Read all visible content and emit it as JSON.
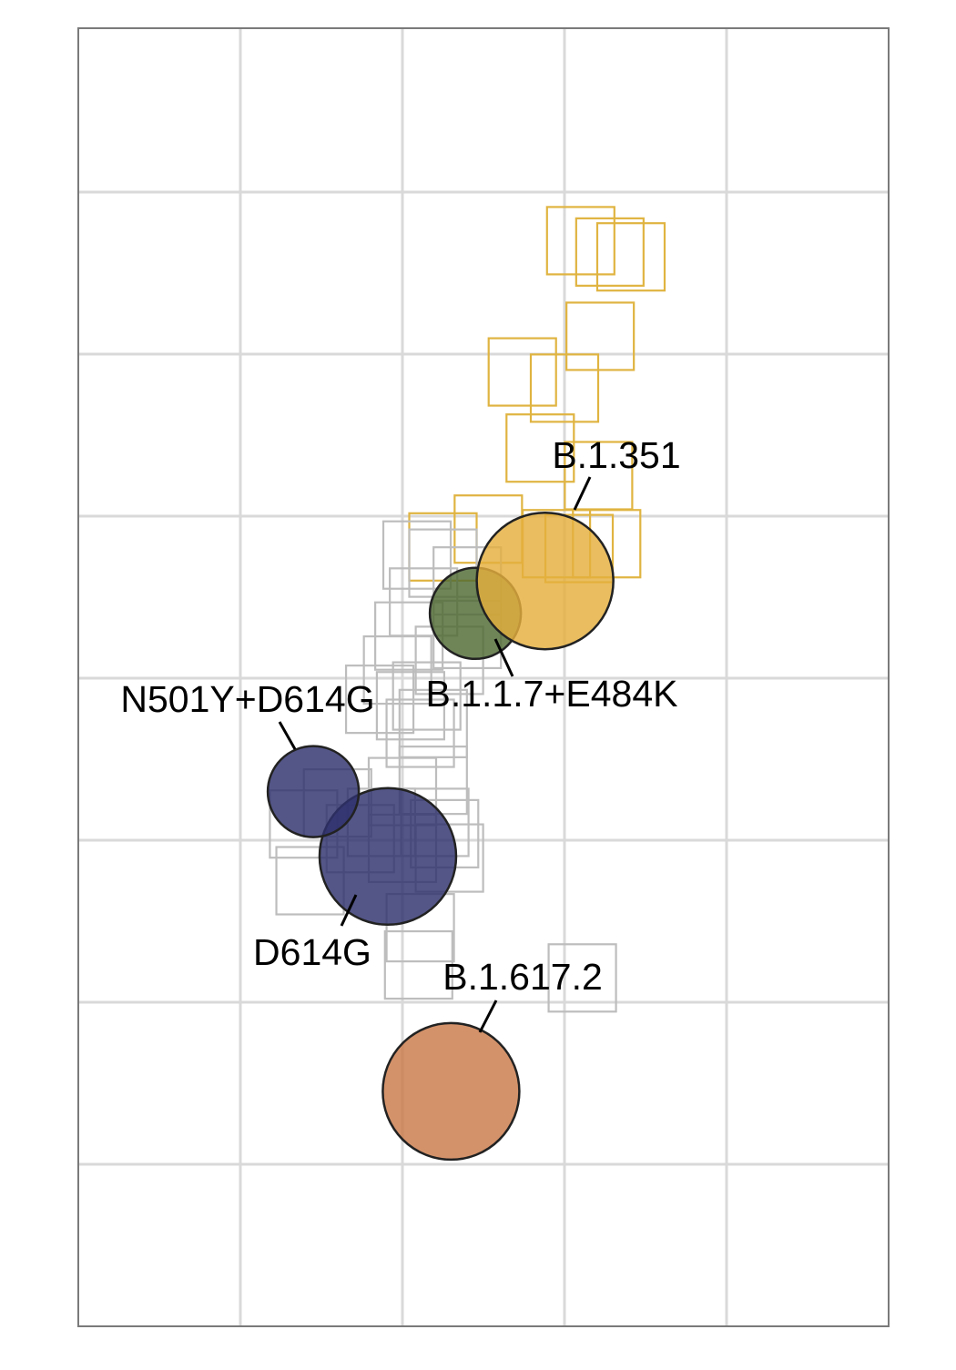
{
  "chart_data": {
    "type": "scatter",
    "title": "",
    "xlabel": "",
    "ylabel": "",
    "xlim": [
      0,
      5
    ],
    "ylim": [
      0,
      8
    ],
    "grid": true,
    "axis_ticks_visible": false,
    "colors": {
      "sera_square": "#E0B441",
      "antigen_square": "#BDBDBD",
      "D614G": "#2E316E",
      "N501Y+D614G": "#2E316E",
      "B.1.1.7+E484K": "#4F6A33",
      "B.1.351": "#E4AE3D",
      "B.1.617.2": "#CB7A49"
    },
    "sera_points": [
      {
        "x": 3.1,
        "y": 6.7
      },
      {
        "x": 3.28,
        "y": 6.63
      },
      {
        "x": 3.22,
        "y": 6.11
      },
      {
        "x": 2.74,
        "y": 5.89
      },
      {
        "x": 3.0,
        "y": 5.79
      },
      {
        "x": 2.85,
        "y": 5.42
      },
      {
        "x": 3.21,
        "y": 5.25
      },
      {
        "x": 3.09,
        "y": 4.8
      },
      {
        "x": 3.26,
        "y": 4.83
      },
      {
        "x": 2.95,
        "y": 4.83
      },
      {
        "x": 2.25,
        "y": 4.81
      },
      {
        "x": 2.53,
        "y": 4.92
      },
      {
        "x": 3.41,
        "y": 6.6
      }
    ],
    "antigen_points": [
      {
        "x": 2.25,
        "y": 4.71
      },
      {
        "x": 2.09,
        "y": 4.76
      },
      {
        "x": 2.4,
        "y": 4.6
      },
      {
        "x": 2.13,
        "y": 4.47
      },
      {
        "x": 2.04,
        "y": 4.26
      },
      {
        "x": 1.97,
        "y": 4.05
      },
      {
        "x": 2.29,
        "y": 4.11
      },
      {
        "x": 2.15,
        "y": 3.89
      },
      {
        "x": 1.86,
        "y": 3.87
      },
      {
        "x": 2.05,
        "y": 3.83
      },
      {
        "x": 2.19,
        "y": 3.72
      },
      {
        "x": 2.11,
        "y": 3.66
      },
      {
        "x": 2.19,
        "y": 3.37
      },
      {
        "x": 1.6,
        "y": 3.23
      },
      {
        "x": 1.87,
        "y": 3.11
      },
      {
        "x": 1.74,
        "y": 3.01
      },
      {
        "x": 1.39,
        "y": 3.1
      },
      {
        "x": 2.26,
        "y": 3.04
      },
      {
        "x": 2.29,
        "y": 2.89
      },
      {
        "x": 2.0,
        "y": 2.95
      },
      {
        "x": 1.43,
        "y": 2.75
      },
      {
        "x": 2.11,
        "y": 2.46
      },
      {
        "x": 2.1,
        "y": 2.23
      },
      {
        "x": 3.11,
        "y": 2.15
      },
      {
        "x": 2.2,
        "y": 3.11
      },
      {
        "x": 2.0,
        "y": 3.3
      },
      {
        "x": 2.4,
        "y": 4.27
      }
    ],
    "labeled_points": [
      {
        "name": "D614G",
        "x": 1.91,
        "y": 2.9,
        "size": 1.5
      },
      {
        "name": "N501Y+D614G",
        "x": 1.45,
        "y": 3.3,
        "size": 1.0
      },
      {
        "name": "B.1.1.7+E484K",
        "x": 2.45,
        "y": 4.4,
        "size": 1.0
      },
      {
        "name": "B.1.351",
        "x": 2.88,
        "y": 4.6,
        "size": 1.5
      },
      {
        "name": "B.1.617.2",
        "x": 2.3,
        "y": 1.45,
        "size": 1.5
      }
    ],
    "annotations": [
      {
        "label": "B.1.351",
        "target": "B.1.351"
      },
      {
        "label": "B.1.1.7+E484K",
        "target": "B.1.1.7+E484K"
      },
      {
        "label": "N501Y+D614G",
        "target": "N501Y+D614G"
      },
      {
        "label": "D614G",
        "target": "D614G"
      },
      {
        "label": "B.1.617.2",
        "target": "B.1.617.2"
      }
    ]
  }
}
